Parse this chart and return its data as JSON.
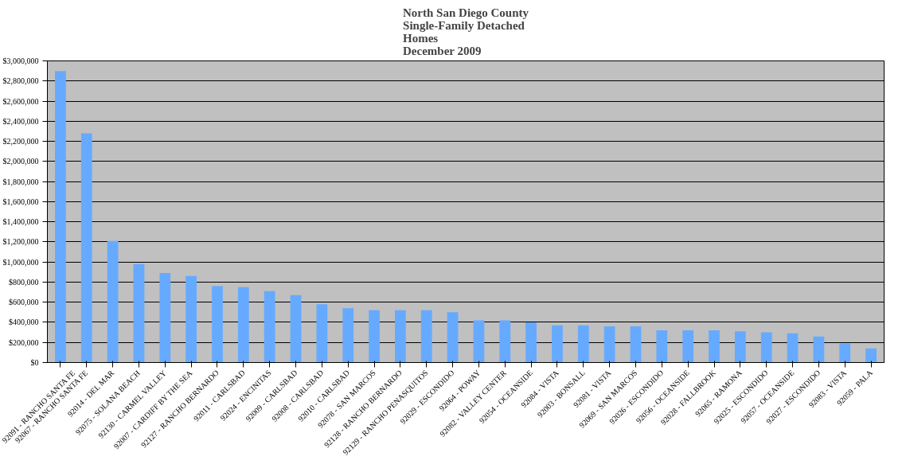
{
  "chart_data": {
    "type": "bar",
    "title": "North San Diego County\nSingle-Family Detached\nHomes\nDecember 2009",
    "categories": [
      "92091 - RANCHO SANTA FE",
      "92067 - RANCHO SANTA FE",
      "92014 - DEL MAR",
      "92075 - SOLANA BEACH",
      "92130 - CARMEL VALLEY",
      "92007 - CARDIFF BY THE SEA",
      "92127 - RANCHO BERNARDO",
      "92011 - CARLSBAD",
      "92024 - ENCINITAS",
      "92009 - CARLSBAD",
      "92008 - CARLSBAD",
      "92010 - CARLSBAD",
      "92078 - SAN MARCOS",
      "92128 - RANCHO BERNARDO",
      "92129 - RANCHO PENASQUITOS",
      "92029 - ESCONDIDO",
      "92064 - POWAY",
      "92082 - VALLEY CENTER",
      "92054 - OCEANSIDE",
      "92084 - VISTA",
      "92003 - BONSALL",
      "92081 - VISTA",
      "92069 - SAN MARCOS",
      "92026 - ESCONDIDO",
      "92056 - OCEANSIDE",
      "92028 - FALLBROOK",
      "92065 - RAMONA",
      "92025 - ESCONDIDO",
      "92057 - OCEANSIDE",
      "92027 - ESCONDIDO",
      "92083 - VISTA",
      "92059 - PALA"
    ],
    "values": [
      2900000,
      2280000,
      1210000,
      980000,
      890000,
      860000,
      760000,
      750000,
      710000,
      670000,
      580000,
      540000,
      520000,
      520000,
      520000,
      500000,
      420000,
      420000,
      400000,
      370000,
      370000,
      360000,
      360000,
      320000,
      320000,
      320000,
      310000,
      300000,
      290000,
      260000,
      190000,
      140000
    ],
    "color": "#66aaff",
    "ylim": [
      0,
      3000000
    ],
    "yticks": [
      {
        "value": 0,
        "label": "$0"
      },
      {
        "value": 200000,
        "label": "$200,000"
      },
      {
        "value": 400000,
        "label": "$400,000"
      },
      {
        "value": 600000,
        "label": "$600,000"
      },
      {
        "value": 800000,
        "label": "$800,000"
      },
      {
        "value": 1000000,
        "label": "$1,000,000"
      },
      {
        "value": 1200000,
        "label": "$1,200,000"
      },
      {
        "value": 1400000,
        "label": "$1,400,000"
      },
      {
        "value": 1600000,
        "label": "$1,600,000"
      },
      {
        "value": 1800000,
        "label": "$1,800,000"
      },
      {
        "value": 2000000,
        "label": "$2,000,000"
      },
      {
        "value": 2200000,
        "label": "$2,200,000"
      },
      {
        "value": 2400000,
        "label": "$2,400,000"
      },
      {
        "value": 2600000,
        "label": "$2,600,000"
      },
      {
        "value": 2800000,
        "label": "$2,800,000"
      },
      {
        "value": 3000000,
        "label": "$3,000,000"
      }
    ],
    "grid": "y"
  }
}
